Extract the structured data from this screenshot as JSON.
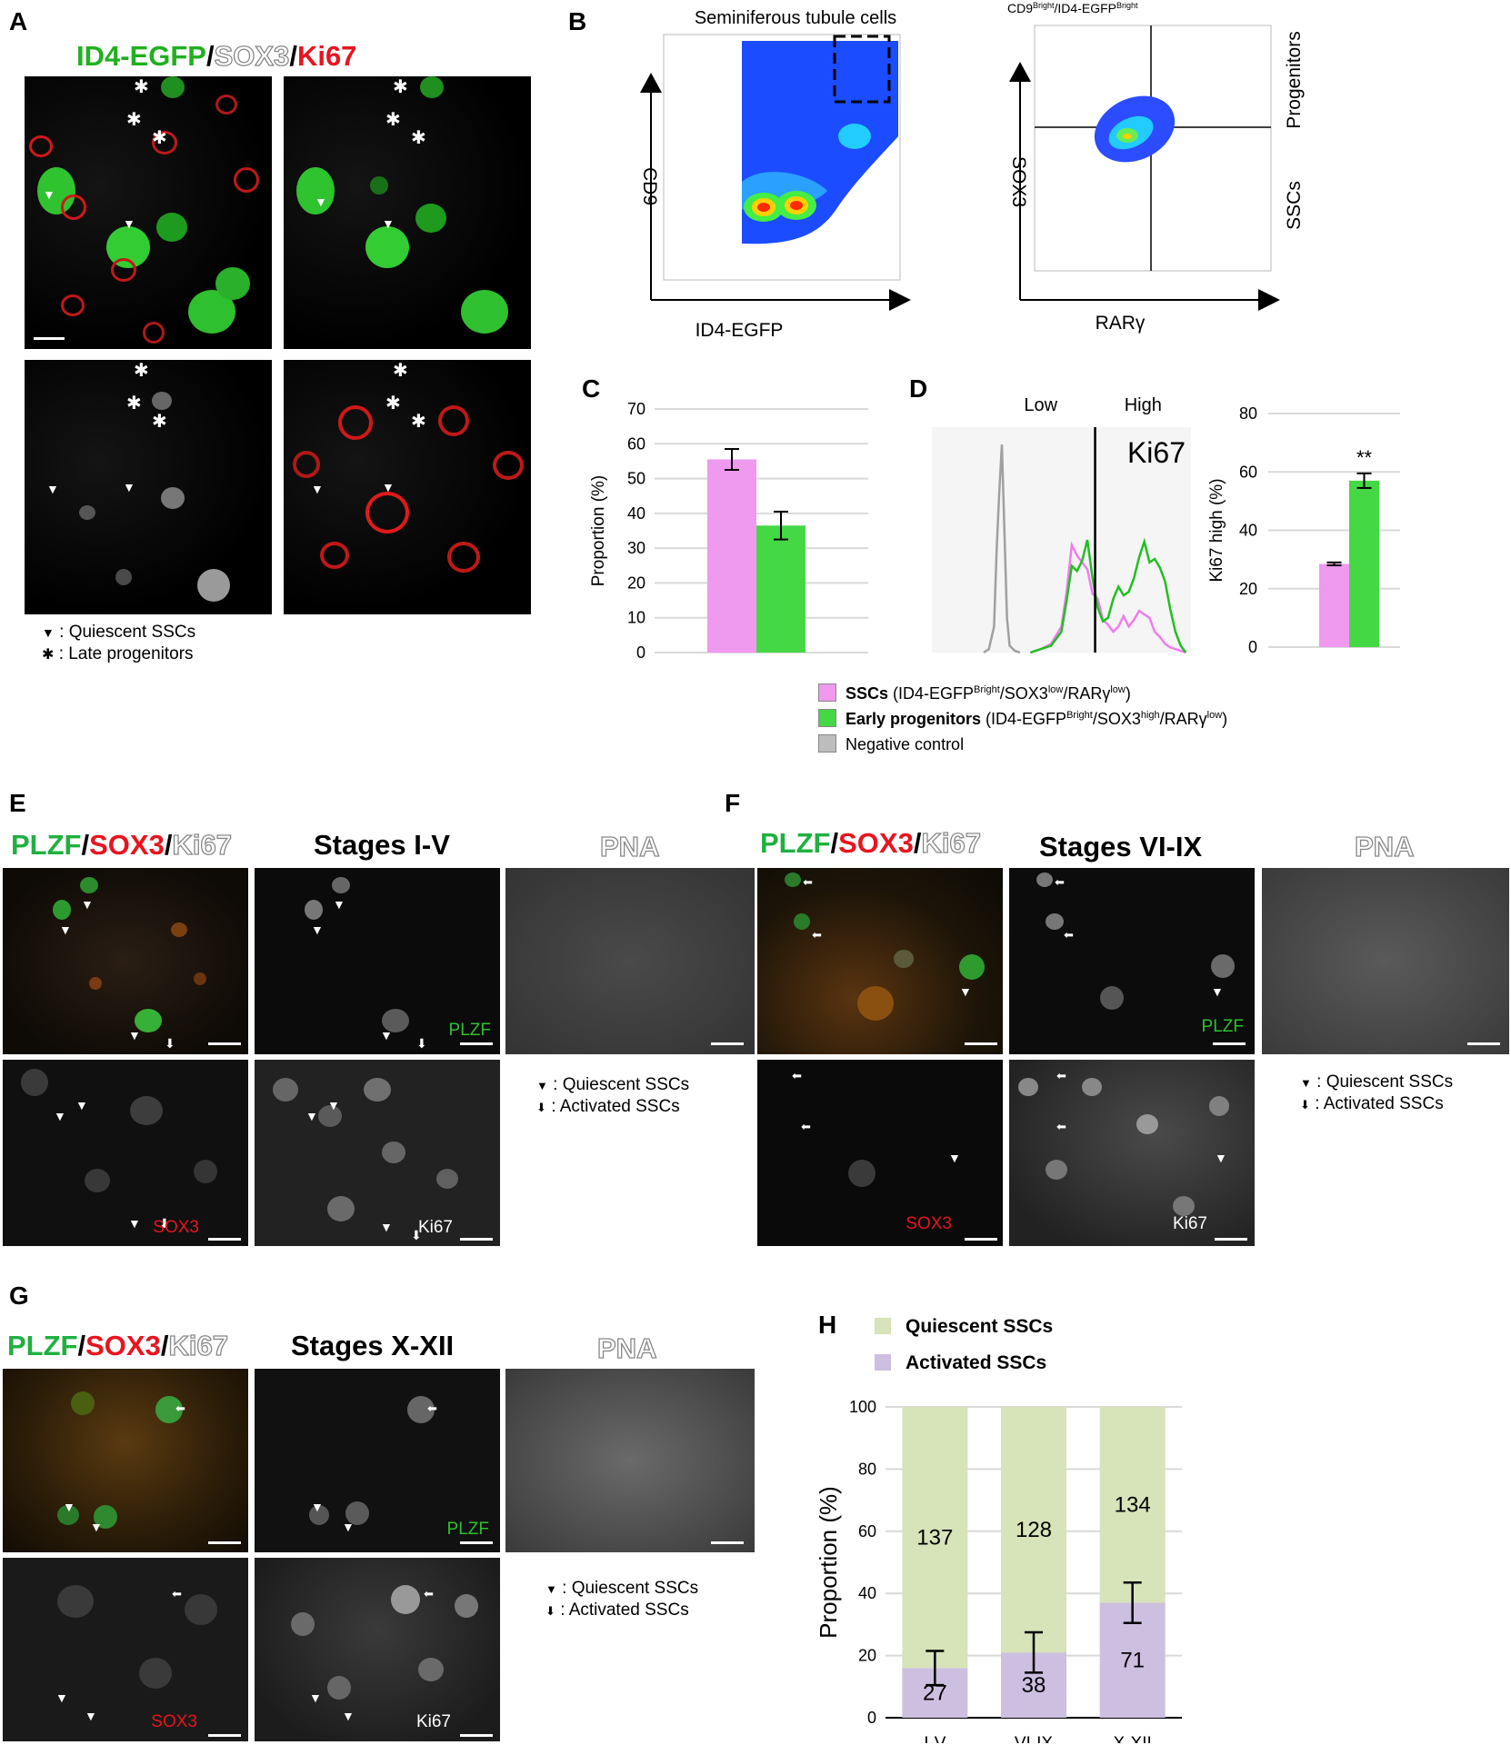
{
  "panels": {
    "A": "A",
    "B": "B",
    "C": "C",
    "D": "D",
    "E": "E",
    "F": "F",
    "G": "G",
    "H": "H"
  },
  "colors": {
    "green": "#20c030",
    "red": "#e8141e",
    "grey": "#8a8a8a",
    "pink": "#e891e8",
    "bright_green": "#2fd62f",
    "light_green": "#d7e3b8",
    "lavender": "#cdbfe0"
  },
  "panelA": {
    "title_parts": [
      "ID4-EGFP",
      "/",
      "SOX3",
      "/",
      "Ki67"
    ],
    "legend": [
      {
        "symbol": "▼",
        "text": ": Quiescent SSCs"
      },
      {
        "symbol": "✱",
        "text": ": Late progenitors"
      }
    ]
  },
  "panelB": {
    "left_title": "Seminiferous tubule cells",
    "left_xlabel": "ID4-EGFP",
    "left_ylabel": "CD9",
    "right_title_main": "CD9",
    "right_title_sup1": "Bright",
    "right_title_mid": "/ID4-EGFP",
    "right_title_sup2": "Bright",
    "right_xlabel": "RARγ",
    "right_ylabel": "SOX3",
    "right_upper_label": "Progenitors",
    "right_lower_label": "SSCs"
  },
  "legend_CD": [
    {
      "label_bold": "SSCs",
      "label_rest": " (ID4-EGFP",
      "sup1": "Bright",
      "mid1": "/SOX3",
      "sup2": "low",
      "mid2": "/RARγ",
      "sup3": "low",
      "end": ")",
      "color": "#ef99ef"
    },
    {
      "label_bold": "Early progenitors",
      "label_rest": " (ID4-EGFP",
      "sup1": "Bright",
      "mid1": "/SOX3",
      "sup2": "high",
      "mid2": "/RARγ",
      "sup3": "low",
      "end": ")",
      "color": "#45d845"
    },
    {
      "label_bold": "",
      "label_rest": "Negative control",
      "sup1": "",
      "mid1": "",
      "sup2": "",
      "mid2": "",
      "sup3": "",
      "end": "",
      "color": "#bdbdbd"
    }
  ],
  "panelE": {
    "title_parts": [
      "PLZF",
      "/",
      "SOX3",
      "/",
      "Ki67"
    ],
    "stage": "Stages I-V",
    "pna": "PNA",
    "tag_plzf": "PLZF",
    "tag_sox3": "SOX3",
    "tag_ki67": "Ki67",
    "legend": [
      {
        "symbol": "▼",
        "text": ": Quiescent SSCs"
      },
      {
        "symbol": "⬇",
        "text": ": Activated SSCs"
      }
    ]
  },
  "panelF": {
    "title_parts": [
      "PLZF",
      "/",
      "SOX3",
      "/",
      "Ki67"
    ],
    "stage": "Stages VI-IX",
    "pna": "PNA",
    "tag_plzf": "PLZF",
    "tag_sox3": "SOX3",
    "tag_ki67": "Ki67",
    "legend": [
      {
        "symbol": "▼",
        "text": ": Quiescent SSCs"
      },
      {
        "symbol": "⬇",
        "text": ": Activated SSCs"
      }
    ]
  },
  "panelG": {
    "title_parts": [
      "PLZF",
      "/",
      "SOX3",
      "/",
      "Ki67"
    ],
    "stage": "Stages X-XII",
    "pna": "PNA",
    "tag_plzf": "PLZF",
    "tag_sox3": "SOX3",
    "tag_ki67": "Ki67",
    "legend": [
      {
        "symbol": "▼",
        "text": ": Quiescent SSCs"
      },
      {
        "symbol": "⬇",
        "text": ": Activated SSCs"
      }
    ]
  },
  "chart_data": [
    {
      "panel": "C",
      "type": "bar",
      "categories": [
        "SSCs",
        "Early progenitors"
      ],
      "values": [
        55.5,
        36.5
      ],
      "errors": [
        3,
        4
      ],
      "colors": [
        "#ef99ef",
        "#45d845"
      ],
      "title": "",
      "xlabel": "",
      "ylabel": "Proportion (%)",
      "ylim": [
        0,
        70
      ],
      "yticks": [
        0,
        10,
        20,
        30,
        40,
        50,
        60,
        70
      ],
      "grid": true
    },
    {
      "panel": "D-histogram",
      "type": "line",
      "title": "Ki67",
      "region_labels": [
        "Low",
        "High"
      ],
      "series": [
        {
          "name": "SSCs",
          "color": "#f07cf0",
          "x": [
            0.38,
            0.42,
            0.46,
            0.5,
            0.52,
            0.54,
            0.56,
            0.58,
            0.6,
            0.62,
            0.64,
            0.66,
            0.68,
            0.7,
            0.72,
            0.74,
            0.76,
            0.78,
            0.8,
            0.82,
            0.84,
            0.86,
            0.88,
            0.9,
            0.92,
            0.94,
            0.96,
            0.98
          ],
          "y": [
            0,
            0.2,
            0.5,
            1.5,
            3.5,
            6.2,
            5.6,
            5.2,
            4.8,
            3.4,
            3.1,
            1.9,
            1.6,
            1.2,
            1.5,
            2.1,
            1.5,
            1.9,
            2.4,
            2.2,
            2.0,
            1.2,
            0.9,
            0.5,
            0.3,
            0.2,
            0.1,
            0
          ]
        },
        {
          "name": "Early progenitors",
          "color": "#20c020",
          "x": [
            0.38,
            0.42,
            0.46,
            0.5,
            0.52,
            0.54,
            0.56,
            0.58,
            0.6,
            0.62,
            0.64,
            0.66,
            0.68,
            0.7,
            0.72,
            0.74,
            0.76,
            0.78,
            0.8,
            0.82,
            0.84,
            0.86,
            0.88,
            0.9,
            0.92,
            0.94,
            0.96,
            0.98
          ],
          "y": [
            0,
            0.2,
            0.4,
            1.2,
            3.0,
            5.0,
            4.7,
            5.3,
            6.5,
            4.3,
            2.6,
            1.8,
            2.0,
            3.1,
            3.8,
            3.3,
            3.5,
            4.3,
            5.5,
            6.4,
            5.2,
            5.4,
            4.9,
            4.1,
            2.5,
            1.2,
            0.4,
            0
          ]
        },
        {
          "name": "Negative control",
          "color": "#a0a0a0",
          "x": [
            0.2,
            0.22,
            0.24,
            0.25,
            0.26,
            0.27,
            0.28,
            0.29,
            0.3,
            0.32,
            0.34
          ],
          "y": [
            0,
            0.2,
            1.5,
            6,
            9.2,
            12,
            7,
            2,
            0.4,
            0.1,
            0
          ]
        }
      ],
      "xlim": [
        0,
        1
      ],
      "ylim": [
        0,
        13
      ],
      "threshold_x": 0.63
    },
    {
      "panel": "D-bar",
      "type": "bar",
      "categories": [
        "SSCs",
        "Early progenitors"
      ],
      "values": [
        28.5,
        57
      ],
      "errors": [
        0.5,
        2.5
      ],
      "colors": [
        "#ef99ef",
        "#45d845"
      ],
      "annotation": "**",
      "ylabel": "Ki67 high  (%)",
      "ylim": [
        0,
        80
      ],
      "yticks": [
        0,
        20,
        40,
        60,
        80
      ],
      "grid": true
    },
    {
      "panel": "H",
      "type": "bar",
      "stacked": true,
      "categories": [
        "I-V",
        "VI-IX",
        "X-XII"
      ],
      "series": [
        {
          "name": "Quiescent SSCs",
          "color": "#d7e3b8",
          "counts": [
            "137",
            "128",
            "134"
          ],
          "values": [
            84,
            79,
            63
          ]
        },
        {
          "name": "Activated SSCs",
          "color": "#cdbfe0",
          "counts": [
            "27",
            "38",
            "71"
          ],
          "values": [
            16,
            21,
            37
          ]
        }
      ],
      "errors": [
        5.5,
        6.5,
        6.5
      ],
      "ylabel": "Proportion (%)",
      "ylim": [
        0,
        100
      ],
      "yticks": [
        "0",
        "20",
        "40",
        "60",
        "80",
        "100"
      ],
      "grid": true
    }
  ]
}
